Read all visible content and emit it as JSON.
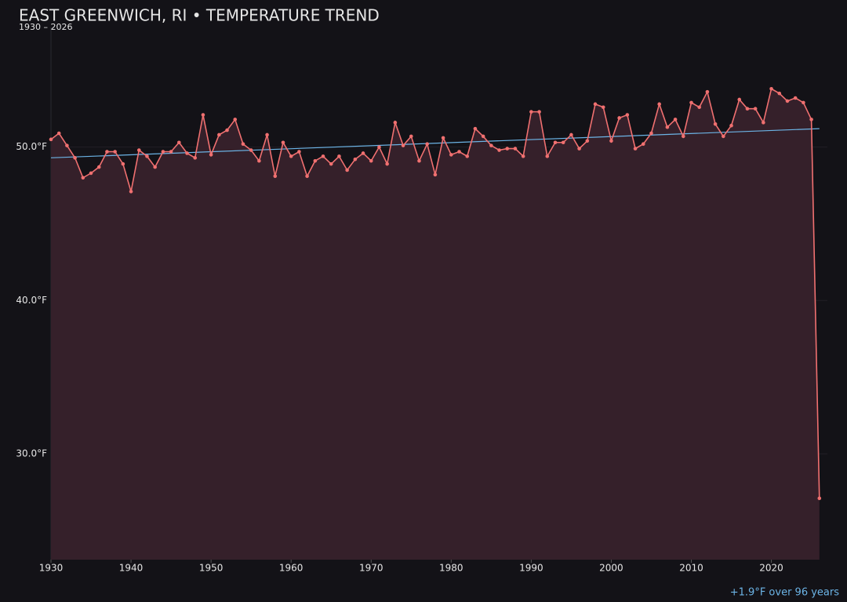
{
  "chart_data": {
    "type": "line",
    "title": "EAST GREENWICH, RI • TEMPERATURE TREND",
    "subtitle": "1930 – 2026",
    "annotation": "+1.9°F over 96 years",
    "x": [
      1930,
      1931,
      1932,
      1933,
      1934,
      1935,
      1936,
      1937,
      1938,
      1939,
      1940,
      1941,
      1942,
      1943,
      1944,
      1945,
      1946,
      1947,
      1948,
      1949,
      1950,
      1951,
      1952,
      1953,
      1954,
      1955,
      1956,
      1957,
      1958,
      1959,
      1960,
      1961,
      1962,
      1963,
      1964,
      1965,
      1966,
      1967,
      1968,
      1969,
      1970,
      1971,
      1972,
      1973,
      1974,
      1975,
      1976,
      1977,
      1978,
      1979,
      1980,
      1981,
      1982,
      1983,
      1984,
      1985,
      1986,
      1987,
      1988,
      1989,
      1990,
      1991,
      1992,
      1993,
      1994,
      1995,
      1996,
      1997,
      1998,
      1999,
      2000,
      2001,
      2002,
      2003,
      2004,
      2005,
      2006,
      2007,
      2008,
      2009,
      2010,
      2011,
      2012,
      2013,
      2014,
      2015,
      2016,
      2017,
      2018,
      2019,
      2020,
      2021,
      2022,
      2023,
      2024,
      2025,
      2026
    ],
    "series": [
      {
        "color": "#f07070",
        "area_color": "#35202a",
        "values": [
          50.5,
          50.9,
          50.1,
          49.3,
          48.0,
          48.3,
          48.7,
          49.7,
          49.7,
          48.9,
          47.1,
          49.8,
          49.4,
          48.7,
          49.7,
          49.7,
          50.3,
          49.6,
          49.3,
          52.1,
          49.5,
          50.8,
          51.1,
          51.8,
          50.2,
          49.8,
          49.1,
          50.8,
          48.1,
          50.3,
          49.4,
          49.7,
          48.1,
          49.1,
          49.4,
          48.9,
          49.4,
          48.5,
          49.2,
          49.6,
          49.1,
          50.0,
          48.9,
          51.6,
          50.1,
          50.7,
          49.1,
          50.2,
          48.2,
          50.6,
          49.5,
          49.7,
          49.4,
          51.2,
          50.7,
          50.1,
          49.8,
          49.9,
          49.9,
          49.4,
          52.3,
          52.3,
          49.4,
          50.3,
          50.3,
          50.8,
          49.9,
          50.4,
          52.8,
          52.6,
          50.4,
          51.9,
          52.1,
          49.9,
          50.2,
          50.9,
          52.8,
          51.3,
          51.8,
          50.7,
          52.9,
          52.6,
          53.6,
          51.5,
          50.7,
          51.4,
          53.1,
          52.5,
          52.5,
          51.6,
          53.8,
          53.5,
          53.0,
          53.2,
          52.9,
          51.8,
          27.1
        ]
      }
    ],
    "trend": {
      "color": "#6cb4e6",
      "x": [
        1930,
        2026
      ],
      "values": [
        49.3,
        51.2
      ]
    },
    "xlim": [
      1930,
      2027
    ],
    "ylim": [
      23.1,
      57.8
    ],
    "xticks": [
      1930,
      1940,
      1950,
      1960,
      1970,
      1980,
      1990,
      2000,
      2010,
      2020
    ],
    "yticks": [
      {
        "value": 30,
        "label": "30.0°F"
      },
      {
        "value": 40,
        "label": "40.0°F"
      },
      {
        "value": 50,
        "label": "50.0°F"
      }
    ],
    "grid": true
  }
}
